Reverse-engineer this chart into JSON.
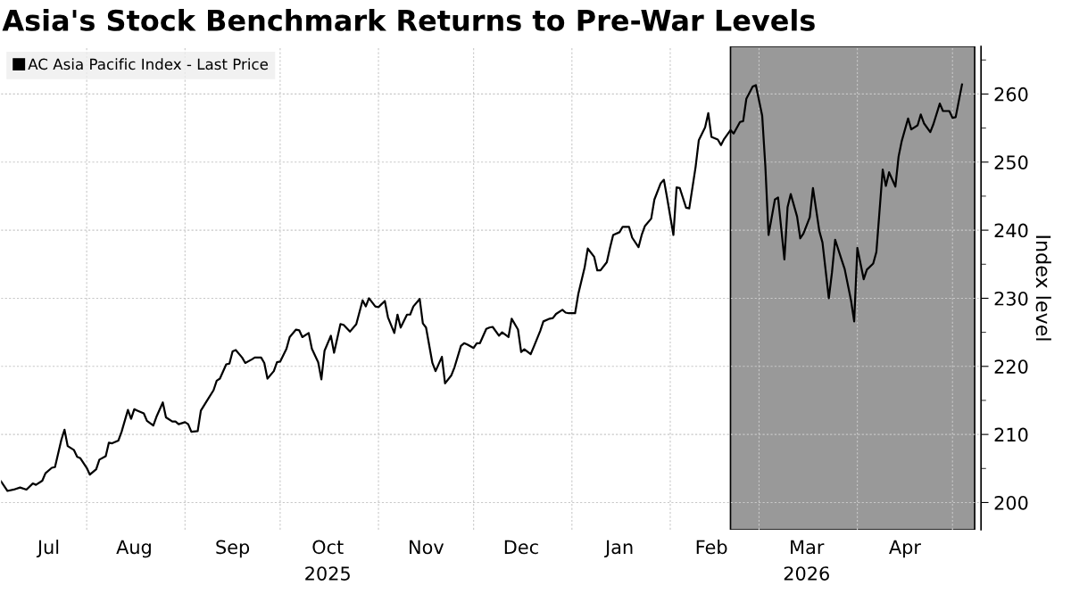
{
  "chart_data": {
    "type": "line",
    "title": "Asia's Stock Benchmark Returns to Pre-War Levels",
    "ylabel": "Index level",
    "xlim": [
      "2025-07-05",
      "2026-05-10"
    ],
    "xticks": [
      {
        "value": "2025-07-20",
        "label": "Jul"
      },
      {
        "value": "2025-08-16",
        "label": "Aug"
      },
      {
        "value": "2025-09-16",
        "label": "Sep"
      },
      {
        "value": "2025-10-16",
        "label": "Oct\n2025"
      },
      {
        "value": "2025-11-16",
        "label": "Nov"
      },
      {
        "value": "2025-12-16",
        "label": "Dec"
      },
      {
        "value": "2026-01-16",
        "label": "Jan"
      },
      {
        "value": "2026-02-14",
        "label": "Feb"
      },
      {
        "value": "2026-03-16",
        "label": "Mar\n2026"
      },
      {
        "value": "2026-04-16",
        "label": "Apr"
      },
      {
        "value": "2025-08-01",
        "label": null
      },
      {
        "value": "2025-09-01",
        "label": null
      },
      {
        "value": "2025-10-01",
        "label": null
      },
      {
        "value": "2025-11-01",
        "label": null
      },
      {
        "value": "2025-12-01",
        "label": null
      },
      {
        "value": "2026-01-01",
        "label": null
      },
      {
        "value": "2026-02-01",
        "label": null
      },
      {
        "value": "2026-03-01",
        "label": null
      },
      {
        "value": "2026-04-01",
        "label": null
      },
      {
        "value": "2026-05-01",
        "label": null
      }
    ],
    "ylim": [
      196,
      267
    ],
    "yticks": [
      200,
      210,
      220,
      230,
      240,
      250,
      260,
      {
        "value": 205,
        "label": null
      },
      {
        "value": 215,
        "label": null
      },
      {
        "value": 225,
        "label": null
      },
      {
        "value": 235,
        "label": null
      },
      {
        "value": 245,
        "label": null
      },
      {
        "value": 255,
        "label": null
      },
      {
        "value": 265,
        "label": null
      }
    ],
    "grid": true,
    "legend": "top left",
    "marker": "none",
    "line_style": "solid",
    "bands": [
      {
        "axis": "x",
        "from": "2026-02-20",
        "to": "2026-05-08",
        "color": "#999999"
      }
    ],
    "series": [
      {
        "name": "AC Asia Pacific Index - Last Price",
        "color": "#000000",
        "x": [
          "2025-07-05",
          "2025-07-07",
          "2025-07-09",
          "2025-07-11",
          "2025-07-13",
          "2025-07-15",
          "2025-07-16",
          "2025-07-18",
          "2025-07-19",
          "2025-07-21",
          "2025-07-22",
          "2025-07-24",
          "2025-07-25",
          "2025-07-26",
          "2025-07-28",
          "2025-07-29",
          "2025-07-30",
          "2025-08-01",
          "2025-08-02",
          "2025-08-04",
          "2025-08-05",
          "2025-08-07",
          "2025-08-08",
          "2025-08-09",
          "2025-08-11",
          "2025-08-12",
          "2025-08-14",
          "2025-08-15",
          "2025-08-16",
          "2025-08-17",
          "2025-08-19",
          "2025-08-20",
          "2025-08-22",
          "2025-08-23",
          "2025-08-25",
          "2025-08-26",
          "2025-08-28",
          "2025-08-29",
          "2025-08-30",
          "2025-09-01",
          "2025-09-02",
          "2025-09-03",
          "2025-09-05",
          "2025-09-06",
          "2025-09-08",
          "2025-09-10",
          "2025-09-11",
          "2025-09-12",
          "2025-09-14",
          "2025-09-15",
          "2025-09-16",
          "2025-09-17",
          "2025-09-19",
          "2025-09-20",
          "2025-09-22",
          "2025-09-23",
          "2025-09-25",
          "2025-09-26",
          "2025-09-27",
          "2025-09-29",
          "2025-09-30",
          "2025-10-01",
          "2025-10-03",
          "2025-10-04",
          "2025-10-06",
          "2025-10-07",
          "2025-10-08",
          "2025-10-10",
          "2025-10-11",
          "2025-10-13",
          "2025-10-14",
          "2025-10-15",
          "2025-10-17",
          "2025-10-18",
          "2025-10-20",
          "2025-10-21",
          "2025-10-23",
          "2025-10-25",
          "2025-10-27",
          "2025-10-28",
          "2025-10-29",
          "2025-10-31",
          "2025-11-01",
          "2025-11-03",
          "2025-11-04",
          "2025-11-06",
          "2025-11-07",
          "2025-11-08",
          "2025-11-10",
          "2025-11-11",
          "2025-11-12",
          "2025-11-14",
          "2025-11-15",
          "2025-11-16",
          "2025-11-18",
          "2025-11-19",
          "2025-11-21",
          "2025-11-22",
          "2025-11-24",
          "2025-11-25",
          "2025-11-27",
          "2025-11-28",
          "2025-11-29",
          "2025-12-01",
          "2025-12-02",
          "2025-12-03",
          "2025-12-05",
          "2025-12-06",
          "2025-12-07",
          "2025-12-09",
          "2025-12-10",
          "2025-12-12",
          "2025-12-13",
          "2025-12-15",
          "2025-12-16",
          "2025-12-17",
          "2025-12-19",
          "2025-12-20",
          "2025-12-22",
          "2025-12-23",
          "2025-12-25",
          "2025-12-26",
          "2025-12-27",
          "2025-12-29",
          "2025-12-30",
          "2025-12-31",
          "2026-01-02",
          "2026-01-03",
          "2026-01-05",
          "2026-01-06",
          "2026-01-08",
          "2026-01-09",
          "2026-01-10",
          "2026-01-12",
          "2026-01-13",
          "2026-01-14",
          "2026-01-16",
          "2026-01-17",
          "2026-01-19",
          "2026-01-20",
          "2026-01-22",
          "2026-01-23",
          "2026-01-24",
          "2026-01-26",
          "2026-01-27",
          "2026-01-29",
          "2026-01-30",
          "2026-01-31",
          "2026-02-02",
          "2026-02-03",
          "2026-02-04",
          "2026-02-06",
          "2026-02-07",
          "2026-02-09",
          "2026-02-10",
          "2026-02-12",
          "2026-02-13",
          "2026-02-14",
          "2026-02-16",
          "2026-02-17",
          "2026-02-18",
          "2026-02-20",
          "2026-02-21",
          "2026-02-23",
          "2026-02-24",
          "2026-02-25",
          "2026-02-27",
          "2026-02-28",
          "2026-03-02",
          "2026-03-03",
          "2026-03-04",
          "2026-03-06",
          "2026-03-07",
          "2026-03-09",
          "2026-03-10",
          "2026-03-11",
          "2026-03-13",
          "2026-03-14",
          "2026-03-15",
          "2026-03-17",
          "2026-03-18",
          "2026-03-20",
          "2026-03-21",
          "2026-03-23",
          "2026-03-24",
          "2026-03-25",
          "2026-03-27",
          "2026-03-28",
          "2026-03-30",
          "2026-03-31",
          "2026-04-01",
          "2026-04-03",
          "2026-04-04",
          "2026-04-06",
          "2026-04-07",
          "2026-04-09",
          "2026-04-10",
          "2026-04-11",
          "2026-04-13",
          "2026-04-14",
          "2026-04-15",
          "2026-04-17",
          "2026-04-18",
          "2026-04-20",
          "2026-04-21",
          "2026-04-22",
          "2026-04-24",
          "2026-04-25",
          "2026-04-27",
          "2026-04-28",
          "2026-04-30",
          "2026-05-01",
          "2026-05-02",
          "2026-05-04"
        ],
        "values": [
          203.1,
          201.7,
          201.9,
          202.2,
          201.9,
          202.8,
          202.6,
          203.2,
          204.3,
          205.1,
          205.2,
          209.2,
          210.7,
          208.3,
          207.7,
          206.7,
          206.5,
          205.1,
          204.1,
          204.9,
          206.3,
          206.8,
          208.8,
          208.7,
          209.1,
          210.4,
          213.6,
          212.3,
          213.7,
          213.5,
          213.1,
          212.0,
          211.3,
          212.6,
          214.7,
          212.5,
          211.9,
          211.9,
          211.5,
          211.8,
          211.5,
          210.4,
          210.5,
          213.5,
          215.0,
          216.5,
          217.9,
          218.2,
          220.3,
          220.4,
          222.2,
          222.4,
          221.3,
          220.5,
          221.0,
          221.3,
          221.3,
          220.5,
          218.2,
          219.3,
          220.6,
          220.7,
          222.6,
          224.3,
          225.4,
          225.3,
          224.3,
          224.9,
          222.6,
          220.6,
          218.1,
          222.3,
          224.5,
          222.0,
          226.2,
          226.1,
          225.1,
          226.2,
          229.7,
          228.8,
          230.0,
          228.8,
          228.7,
          229.6,
          227.2,
          224.9,
          227.6,
          225.7,
          227.6,
          227.6,
          228.8,
          229.9,
          226.3,
          225.7,
          220.5,
          219.3,
          221.4,
          217.5,
          218.7,
          219.9,
          223.0,
          223.4,
          223.2,
          222.7,
          223.4,
          223.4,
          225.5,
          225.7,
          225.8,
          224.5,
          225.0,
          224.3,
          227.0,
          225.4,
          222.1,
          222.5,
          221.8,
          222.9,
          225.2,
          226.6,
          227.0,
          227.1,
          227.7,
          228.3,
          227.9,
          227.8,
          227.8,
          230.6,
          234.5,
          237.3,
          236.1,
          234.1,
          234.1,
          235.3,
          237.4,
          239.3,
          239.7,
          240.5,
          240.5,
          238.9,
          237.5,
          239.3,
          240.6,
          241.7,
          244.5,
          246.9,
          247.4,
          244.8,
          239.3,
          246.3,
          246.2,
          243.3,
          243.2,
          249.3,
          253.2,
          255.1,
          257.2,
          253.7,
          253.3,
          252.5,
          253.4,
          254.7,
          254.2,
          255.9,
          256.0,
          259.3,
          261.1,
          261.3,
          256.8,
          249.3,
          239.3,
          244.5,
          244.8,
          235.7,
          243.4,
          245.3,
          242.0,
          238.8,
          239.5,
          241.9,
          246.2,
          239.9,
          238.2,
          230.0,
          233.8,
          238.6,
          235.7,
          234.3,
          229.7,
          226.6,
          237.4,
          232.8,
          234.2,
          235.1,
          236.8,
          248.9,
          246.5,
          248.5,
          246.4,
          250.8,
          253.1,
          256.4,
          254.8,
          255.4,
          257.0,
          255.7,
          254.4,
          255.6,
          258.6,
          257.5,
          257.5,
          256.5,
          256.6,
          261.4
        ]
      }
    ]
  }
}
